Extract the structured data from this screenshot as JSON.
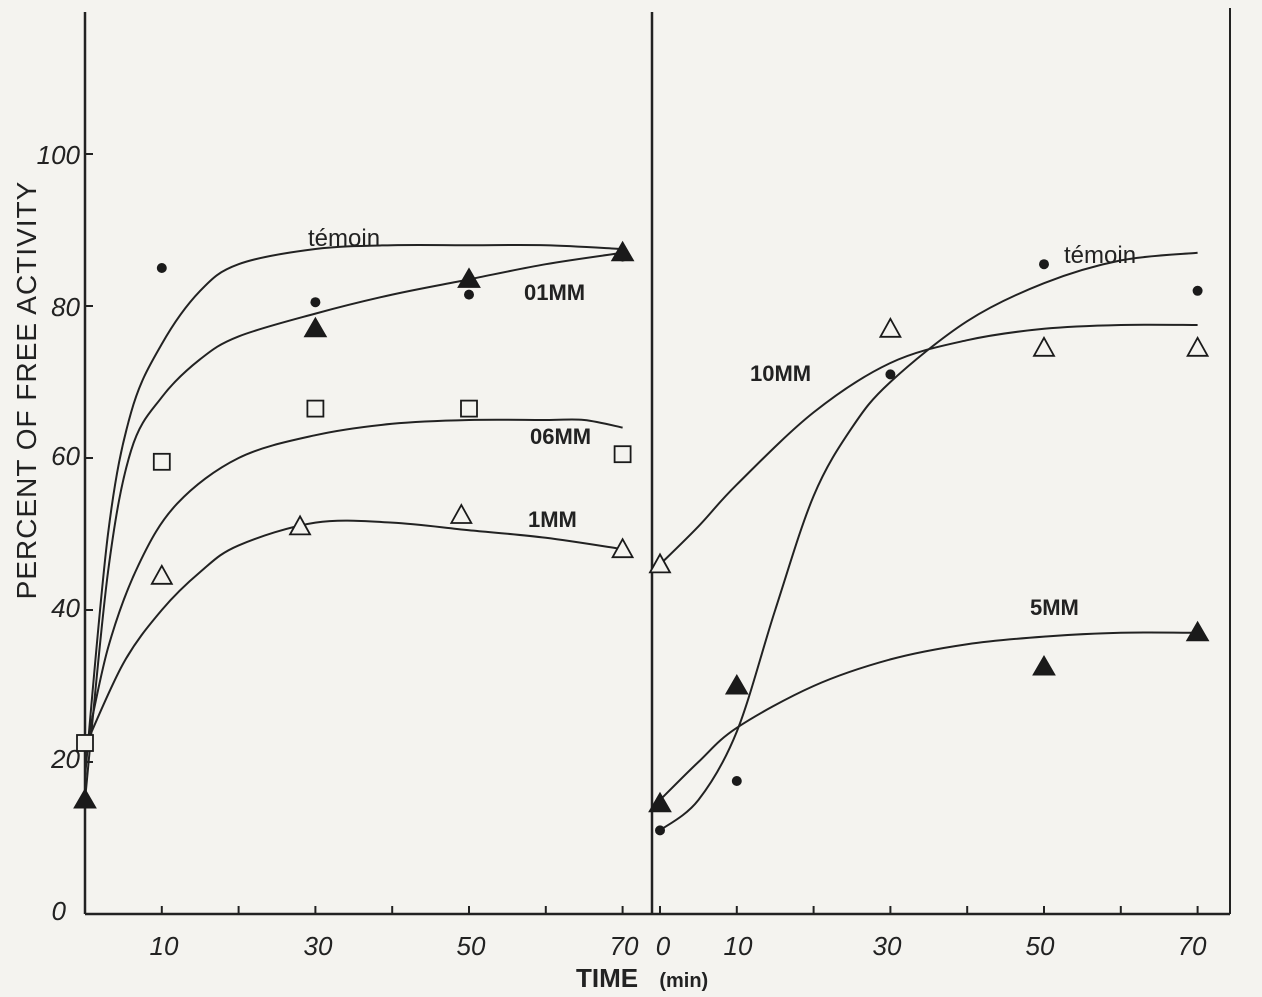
{
  "chart_data": [
    {
      "type": "scatter",
      "panel": "left",
      "title": "",
      "xlabel": "TIME",
      "x_unit": "(min)",
      "ylabel": "PERCENT OF FREE ACTIVITY",
      "xlim": [
        0,
        72
      ],
      "ylim": [
        0,
        100
      ],
      "x_ticks": [
        10,
        30,
        50,
        70
      ],
      "y_ticks": [
        "0",
        "20",
        "40",
        "60",
        "80",
        "100"
      ],
      "grid": false,
      "annotations": [
        "témoin",
        "01MM",
        "06MM",
        "1MM"
      ],
      "series": [
        {
          "name": "témoin",
          "marker": "dot",
          "points": [
            [
              10,
              85
            ],
            [
              30,
              80.5
            ],
            [
              50,
              81.5
            ],
            [
              70,
              86.5
            ]
          ],
          "curve": [
            [
              0,
              18
            ],
            [
              3,
              50
            ],
            [
              6,
              66
            ],
            [
              10,
              75
            ],
            [
              15,
              82
            ],
            [
              20,
              85.5
            ],
            [
              30,
              87.5
            ],
            [
              40,
              88
            ],
            [
              50,
              88
            ],
            [
              60,
              88
            ],
            [
              70,
              87.5
            ]
          ]
        },
        {
          "name": "01MM",
          "marker": "filled-triangle",
          "points": [
            [
              0,
              15
            ],
            [
              30,
              77
            ],
            [
              50,
              83.5
            ],
            [
              70,
              87
            ]
          ],
          "curve": [
            [
              0,
              15
            ],
            [
              3,
              45
            ],
            [
              6,
              61
            ],
            [
              10,
              68
            ],
            [
              15,
              73
            ],
            [
              20,
              76
            ],
            [
              30,
              79
            ],
            [
              40,
              81.5
            ],
            [
              50,
              83.5
            ],
            [
              60,
              85.5
            ],
            [
              70,
              87
            ]
          ]
        },
        {
          "name": "06MM",
          "marker": "open-square",
          "points": [
            [
              0,
              22.5
            ],
            [
              10,
              59.5
            ],
            [
              30,
              66.5
            ],
            [
              50,
              66.5
            ],
            [
              70,
              60.5
            ]
          ],
          "curve": [
            [
              0,
              21
            ],
            [
              3,
              35
            ],
            [
              7,
              46
            ],
            [
              12,
              54
            ],
            [
              20,
              60
            ],
            [
              30,
              63
            ],
            [
              40,
              64.5
            ],
            [
              50,
              65
            ],
            [
              60,
              65
            ],
            [
              65,
              65
            ],
            [
              70,
              64
            ]
          ]
        },
        {
          "name": "1MM",
          "marker": "open-triangle",
          "points": [
            [
              10,
              44.5
            ],
            [
              28,
              51
            ],
            [
              49,
              52.5
            ],
            [
              70,
              48
            ]
          ],
          "curve": [
            [
              0,
              22
            ],
            [
              5,
              33
            ],
            [
              10,
              40
            ],
            [
              15,
              45
            ],
            [
              20,
              48.5
            ],
            [
              30,
              51.5
            ],
            [
              40,
              51.5
            ],
            [
              50,
              50.5
            ],
            [
              60,
              49.5
            ],
            [
              70,
              48
            ]
          ]
        }
      ]
    },
    {
      "type": "scatter",
      "panel": "right",
      "title": "",
      "xlabel": "TIME",
      "x_unit": "(min)",
      "ylabel": "PERCENT OF FREE ACTIVITY",
      "xlim": [
        0,
        72
      ],
      "ylim": [
        0,
        100
      ],
      "x_ticks": [
        "0",
        "10",
        "30",
        "50",
        "70"
      ],
      "grid": false,
      "annotations": [
        "témoin",
        "10MM",
        "5MM"
      ],
      "series": [
        {
          "name": "témoin",
          "marker": "dot",
          "points": [
            [
              0,
              11
            ],
            [
              10,
              17.5
            ],
            [
              30,
              71
            ],
            [
              50,
              85.5
            ],
            [
              70,
              82
            ]
          ],
          "curve": [
            [
              0,
              11
            ],
            [
              5,
              15
            ],
            [
              10,
              24
            ],
            [
              15,
              40
            ],
            [
              20,
              55
            ],
            [
              25,
              64
            ],
            [
              30,
              70
            ],
            [
              40,
              78
            ],
            [
              50,
              83
            ],
            [
              60,
              86
            ],
            [
              70,
              87
            ]
          ]
        },
        {
          "name": "10MM",
          "marker": "open-triangle",
          "points": [
            [
              0,
              46
            ],
            [
              30,
              77
            ],
            [
              50,
              74.5
            ],
            [
              70,
              74.5
            ]
          ],
          "curve": [
            [
              0,
              46
            ],
            [
              5,
              51
            ],
            [
              10,
              56.5
            ],
            [
              20,
              66
            ],
            [
              30,
              72.5
            ],
            [
              40,
              75.5
            ],
            [
              50,
              77
            ],
            [
              60,
              77.5
            ],
            [
              70,
              77.5
            ]
          ]
        },
        {
          "name": "5MM",
          "marker": "filled-triangle",
          "points": [
            [
              0,
              14.5
            ],
            [
              10,
              30
            ],
            [
              50,
              32.5
            ],
            [
              70,
              37
            ]
          ],
          "curve": [
            [
              0,
              15
            ],
            [
              5,
              20
            ],
            [
              10,
              24.5
            ],
            [
              20,
              30
            ],
            [
              30,
              33.5
            ],
            [
              40,
              35.5
            ],
            [
              50,
              36.5
            ],
            [
              60,
              37
            ],
            [
              70,
              37
            ]
          ]
        }
      ]
    }
  ],
  "labels": {
    "ylabel": "PERCENT OF FREE ACTIVITY",
    "xlabel": "TIME",
    "x_unit": "(min)",
    "left_x_ticks": [
      "10",
      "30",
      "50",
      "70"
    ],
    "right_x_ticks": [
      "0",
      "10",
      "30",
      "50",
      "70"
    ],
    "y_ticks": [
      "0",
      "20",
      "40",
      "60",
      "80",
      "100"
    ],
    "left_annotations": [
      "témoin",
      "01MM",
      "06MM",
      "1MM"
    ],
    "right_annotations": [
      "témoin",
      "10MM",
      "5MM"
    ]
  }
}
